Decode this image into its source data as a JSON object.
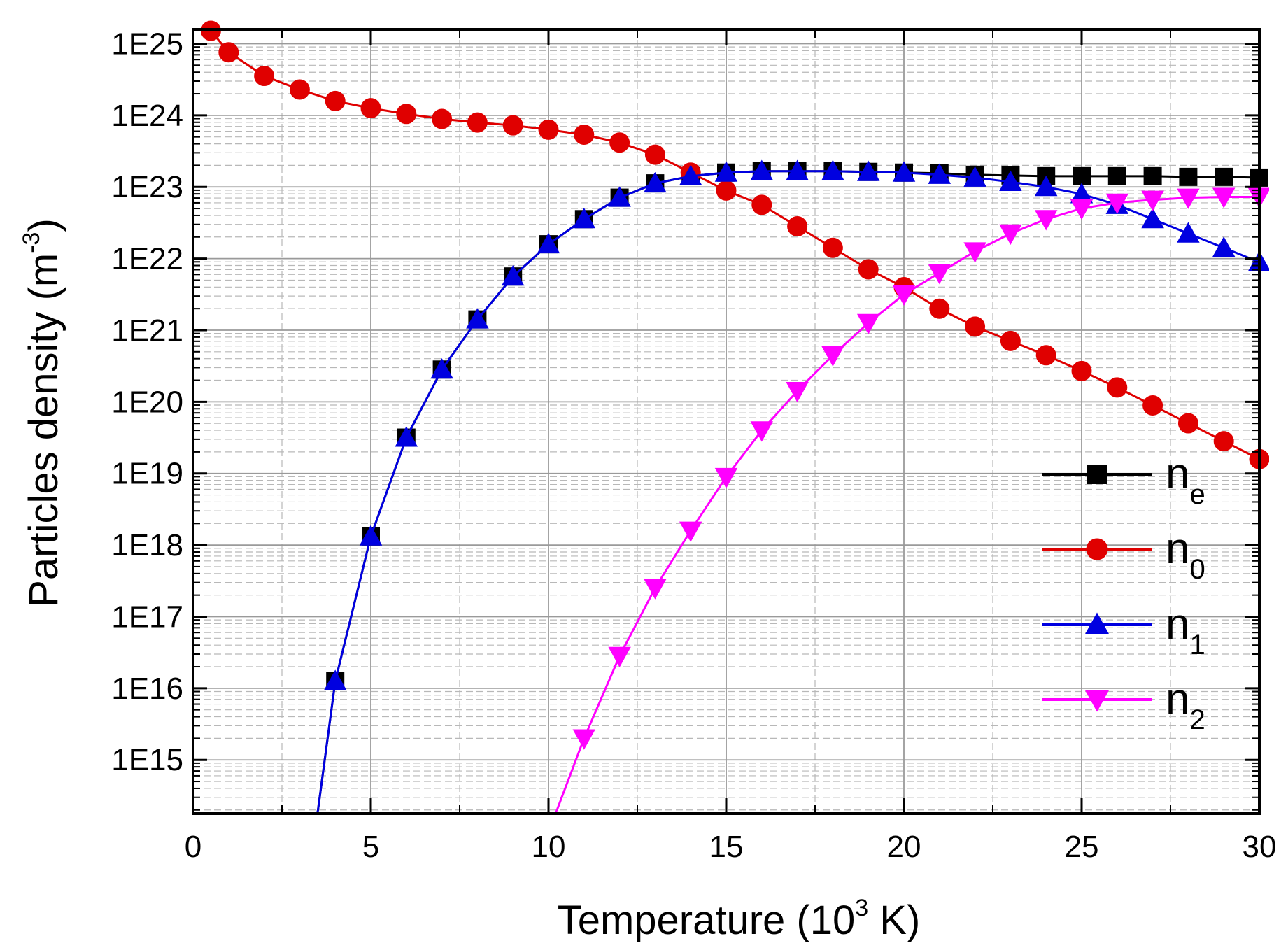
{
  "chart_data": {
    "type": "line",
    "title": "",
    "xlabel": {
      "main": "Temperature (10",
      "sup": "3",
      "tail": " K)"
    },
    "ylabel": {
      "main": "Particles density (m",
      "sup": "-3",
      "tail": ")"
    },
    "xlim": [
      0,
      30
    ],
    "ylim_log10": [
      14.25,
      25.2
    ],
    "y_scale": "log",
    "grid": true,
    "x_ticks": [
      0,
      5,
      10,
      15,
      20,
      25,
      30
    ],
    "x_tick_labels": [
      "0",
      "5",
      "10",
      "15",
      "20",
      "25",
      "30"
    ],
    "y_ticks_log10": [
      15,
      16,
      17,
      18,
      19,
      20,
      21,
      22,
      23,
      24,
      25
    ],
    "y_tick_labels": [
      "1E15",
      "1E16",
      "1E17",
      "1E18",
      "1E19",
      "1E20",
      "1E21",
      "1E22",
      "1E23",
      "1E24",
      "1E25"
    ],
    "legend_position": "right",
    "series": [
      {
        "name": "n_e",
        "label_main": "n",
        "label_sub": "e",
        "color": "#000000",
        "marker": "square",
        "x": [
          3.5,
          4,
          5,
          6,
          7,
          8,
          9,
          10,
          11,
          12,
          13,
          14,
          15,
          16,
          17,
          18,
          19,
          20,
          21,
          22,
          23,
          24,
          25,
          26,
          27,
          28,
          29,
          30
        ],
        "log10_y": [
          14.25,
          16.1,
          18.12,
          19.5,
          20.45,
          21.15,
          21.75,
          22.2,
          22.55,
          22.85,
          23.05,
          23.15,
          23.2,
          23.22,
          23.22,
          23.22,
          23.21,
          23.2,
          23.19,
          23.17,
          23.16,
          23.15,
          23.15,
          23.15,
          23.15,
          23.14,
          23.14,
          23.13
        ]
      },
      {
        "name": "n_0",
        "label_main": "n",
        "label_sub": "0",
        "color": "#e00000",
        "marker": "circle",
        "x": [
          0.5,
          1,
          2,
          3,
          4,
          5,
          6,
          7,
          8,
          9,
          10,
          11,
          12,
          13,
          14,
          15,
          16,
          17,
          18,
          19,
          20,
          21,
          22,
          23,
          24,
          25,
          26,
          27,
          28,
          29,
          30
        ],
        "log10_y": [
          25.18,
          24.88,
          24.55,
          24.36,
          24.2,
          24.1,
          24.02,
          23.95,
          23.9,
          23.86,
          23.8,
          23.73,
          23.62,
          23.45,
          23.2,
          22.95,
          22.75,
          22.45,
          22.15,
          21.85,
          21.6,
          21.3,
          21.05,
          20.85,
          20.65,
          20.43,
          20.2,
          19.95,
          19.7,
          19.45,
          19.2
        ]
      },
      {
        "name": "n_1",
        "label_main": "n",
        "label_sub": "1",
        "color": "#0000e0",
        "marker": "triangle-up",
        "x": [
          3.5,
          4,
          5,
          6,
          7,
          8,
          9,
          10,
          11,
          12,
          13,
          14,
          15,
          16,
          17,
          18,
          19,
          20,
          21,
          22,
          23,
          24,
          25,
          26,
          27,
          28,
          29,
          30
        ],
        "log10_y": [
          14.25,
          16.1,
          18.12,
          19.5,
          20.45,
          21.15,
          21.75,
          22.2,
          22.55,
          22.85,
          23.05,
          23.15,
          23.2,
          23.22,
          23.22,
          23.22,
          23.21,
          23.2,
          23.17,
          23.13,
          23.07,
          23.0,
          22.9,
          22.75,
          22.55,
          22.35,
          22.15,
          21.95
        ]
      },
      {
        "name": "n_2",
        "label_main": "n",
        "label_sub": "2",
        "color": "#ff00ff",
        "marker": "triangle-down",
        "x": [
          10.2,
          11,
          12,
          13,
          14,
          15,
          16,
          17,
          18,
          19,
          20,
          21,
          22,
          23,
          24,
          25,
          26,
          27,
          28,
          29,
          30
        ],
        "log10_y": [
          14.25,
          15.3,
          16.45,
          17.4,
          18.2,
          18.95,
          19.6,
          20.15,
          20.65,
          21.1,
          21.5,
          21.8,
          22.1,
          22.35,
          22.55,
          22.7,
          22.78,
          22.82,
          22.85,
          22.86,
          22.86
        ]
      }
    ]
  }
}
